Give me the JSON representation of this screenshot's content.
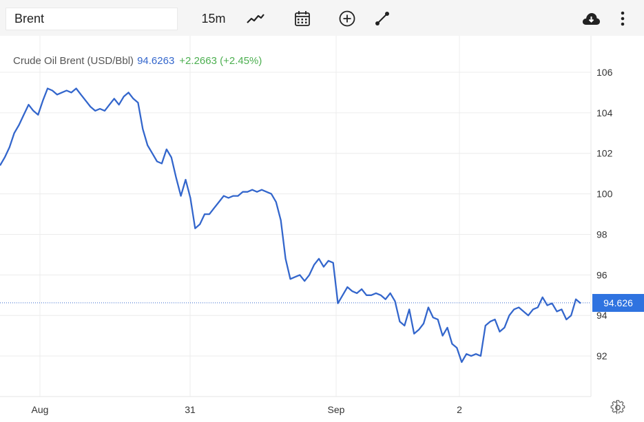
{
  "toolbar": {
    "symbol": "Brent",
    "interval": "15m",
    "icons": [
      "line-chart-icon",
      "calendar-icon",
      "plus-circle-icon",
      "draw-line-icon",
      "cloud-download-icon",
      "more-vertical-icon"
    ]
  },
  "legend": {
    "name": "Crude Oil Brent (USD/Bbl)",
    "price": "94.6263",
    "change": "+2.2663 (+2.45%)"
  },
  "colors": {
    "line": "#3366cc",
    "price_tag": "#2f73e0",
    "change": "#4caf50",
    "grid": "#ececec"
  },
  "chart_data": {
    "type": "line",
    "title": "",
    "xlabel": "",
    "ylabel": "",
    "x_tick_labels": [
      "Aug",
      "31",
      "Sep",
      "2"
    ],
    "y_ticks": [
      92,
      94,
      96,
      98,
      100,
      102,
      104,
      106
    ],
    "y_tick_labels": [
      "92",
      "94",
      "96",
      "98",
      "100",
      "102",
      "104",
      "106"
    ],
    "ylim": [
      90,
      107.8
    ],
    "grid": true,
    "last_price": 94.626,
    "last_price_label": "94.626",
    "series": [
      {
        "values": [
          101.4,
          101.8,
          102.3,
          103.0,
          103.4,
          103.9,
          104.4,
          104.1,
          103.9,
          104.6,
          105.2,
          105.1,
          104.9,
          105.0,
          105.1,
          105.0,
          105.2,
          104.9,
          104.6,
          104.3,
          104.1,
          104.2,
          104.1,
          104.4,
          104.7,
          104.4,
          104.8,
          105.0,
          104.7,
          104.5,
          103.2,
          102.4,
          102.0,
          101.6,
          101.5,
          102.2,
          101.8,
          100.8,
          99.9,
          100.7,
          99.8,
          98.3,
          98.5,
          99.0,
          99.0,
          99.3,
          99.6,
          99.9,
          99.8,
          99.9,
          99.9,
          100.1,
          100.1,
          100.2,
          100.1,
          100.2,
          100.1,
          100.0,
          99.6,
          98.7,
          96.8,
          95.8,
          95.9,
          96.0,
          95.7,
          96.0,
          96.5,
          96.8,
          96.4,
          96.7,
          96.6,
          94.6,
          95.0,
          95.4,
          95.2,
          95.1,
          95.3,
          95.0,
          95.0,
          95.1,
          95.0,
          94.8,
          95.1,
          94.7,
          93.7,
          93.5,
          94.3,
          93.1,
          93.3,
          93.6,
          94.4,
          93.9,
          93.8,
          93.0,
          93.4,
          92.6,
          92.4,
          91.7,
          92.1,
          92.0,
          92.1,
          92.0,
          93.5,
          93.7,
          93.8,
          93.2,
          93.4,
          94.0,
          94.3,
          94.4,
          94.2,
          94.0,
          94.3,
          94.4,
          94.9,
          94.5,
          94.6,
          94.2,
          94.3,
          93.8,
          94.0,
          94.8,
          94.6
        ]
      }
    ]
  }
}
